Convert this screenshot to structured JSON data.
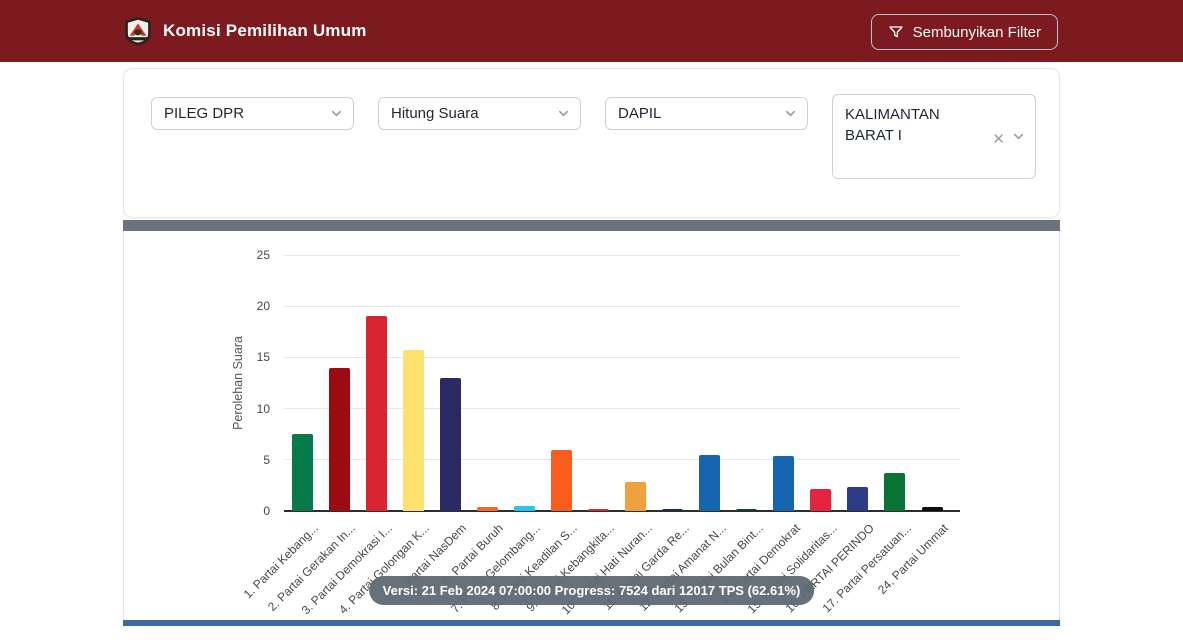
{
  "header": {
    "title": "Komisi Pemilihan Umum",
    "hide_filter_label": "Sembunyikan Filter"
  },
  "filters": {
    "selects": [
      {
        "value": "PILEG DPR"
      },
      {
        "value": "Hitung Suara"
      },
      {
        "value": "DAPIL"
      },
      {
        "value": "KALIMANTAN BARAT I"
      }
    ],
    "clear_icon": "✕"
  },
  "chart_data": {
    "type": "bar",
    "title": "",
    "xlabel": "",
    "ylabel": "Perolehan Suara",
    "ylim": [
      0,
      25
    ],
    "yticks": [
      0,
      5,
      10,
      15,
      20,
      25
    ],
    "grid": true,
    "legend": "none",
    "categories": [
      "1. Partai Kebang...",
      "2. Partai Gerakan In...",
      "3. Partai Demokrasi I...",
      "4. Partai Golongan K...",
      "5. Partai NasDem",
      "6. Partai Buruh",
      "7. Partai Gelombang...",
      "8. Partai Keadilan S...",
      "9. Partai Kebangkita...",
      "10. Partai Hati Nuran...",
      "11. Partai Garda Re...",
      "12. Partai Amanat N...",
      "13. Partai Bulan Bint...",
      "14. Partai Demokrat",
      "15. Partai Solidaritas...",
      "16. PARTAI PERINDO",
      "17. Partai Persatuan...",
      "24. Partai Ummat"
    ],
    "values": [
      7.5,
      14.0,
      19.0,
      15.7,
      13.0,
      0.35,
      0.5,
      6.0,
      0.15,
      2.85,
      0.15,
      5.5,
      0.15,
      5.4,
      2.1,
      2.3,
      3.7,
      0.35
    ],
    "colors": [
      "#077a4b",
      "#9c0b12",
      "#d92531",
      "#fde26d",
      "#2b2a64",
      "#f4682f",
      "#24c3f0",
      "#f95d1e",
      "#df2330",
      "#efa13d",
      "#1d2b4f",
      "#1565b0",
      "#15432a",
      "#1565b0",
      "#e52440",
      "#2b3c85",
      "#0a7434",
      "#0d0d0d"
    ],
    "tooltip": "Versi: 21 Feb 2024 07:00:00 Progress: 7524 dari 12017 TPS (62.61%)"
  },
  "theme": {
    "header_bg": "#7c1a1f",
    "divider": "#6b7280",
    "table_strip": "#3a6aa8"
  }
}
